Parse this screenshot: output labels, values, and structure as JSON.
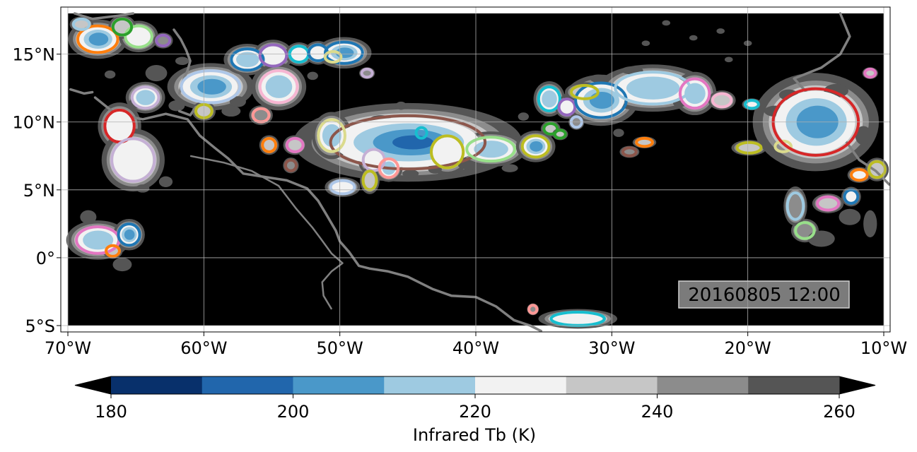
{
  "map": {
    "timestamp": "20160805 12:00",
    "extent": {
      "lon": [
        -70,
        -10
      ],
      "lat": [
        -5,
        18
      ]
    },
    "x_ticks": [
      {
        "lon": -70,
        "label": "70°W"
      },
      {
        "lon": -60,
        "label": "60°W"
      },
      {
        "lon": -50,
        "label": "50°W"
      },
      {
        "lon": -40,
        "label": "40°W"
      },
      {
        "lon": -30,
        "label": "30°W"
      },
      {
        "lon": -20,
        "label": "20°W"
      },
      {
        "lon": -10,
        "label": "10°W"
      }
    ],
    "y_ticks": [
      {
        "lat": 15,
        "label": "15°N"
      },
      {
        "lat": 10,
        "label": "10°N"
      },
      {
        "lat": 5,
        "label": "5°N"
      },
      {
        "lat": 0,
        "label": "0°"
      },
      {
        "lat": -5,
        "label": "5°S"
      }
    ],
    "grid": true,
    "background_color": "#000000",
    "coastline_color": "#808080"
  },
  "colorbar": {
    "label": "Infrared Tb (K)",
    "min": 180,
    "max": 260,
    "step": 10,
    "extend": "both",
    "colors": [
      "#08306b",
      "#2166ac",
      "#4a98c9",
      "#9ecae1",
      "#f2f2f2",
      "#c6c6c6",
      "#8c8c8c",
      "#555555"
    ],
    "under_color": "#000000",
    "over_color": "#000000",
    "tick_values": [
      180,
      200,
      220,
      240,
      260
    ],
    "tick_labels": [
      "180",
      "200",
      "220",
      "240",
      "260"
    ]
  },
  "chart_data": {
    "type": "heatmap",
    "variable": "Infrared Tb (K)",
    "clusters": [
      {
        "lon": -67.8,
        "lat": 16.1,
        "rx": 1.5,
        "ry": 1.0,
        "min_tb": 205,
        "outline": "#ff7f0e"
      },
      {
        "lon": -64.8,
        "lat": 16.3,
        "rx": 1.0,
        "ry": 0.8,
        "min_tb": 225,
        "outline": "#98df8a"
      },
      {
        "lon": -66.0,
        "lat": 17.0,
        "rx": 0.7,
        "ry": 0.6,
        "min_tb": 230,
        "outline": "#2ca02c"
      },
      {
        "lon": -63.0,
        "lat": 16.0,
        "rx": 0.5,
        "ry": 0.4,
        "min_tb": 240,
        "outline": "#9467bd"
      },
      {
        "lon": -66.2,
        "lat": 9.7,
        "rx": 1.1,
        "ry": 1.2,
        "min_tb": 225,
        "outline": "#d62728"
      },
      {
        "lon": -65.2,
        "lat": 7.2,
        "rx": 1.6,
        "ry": 1.6,
        "min_tb": 222,
        "outline": "#c5b0d5"
      },
      {
        "lon": -64.3,
        "lat": 11.8,
        "rx": 1.0,
        "ry": 0.8,
        "min_tb": 215,
        "outline": "#c5b0d5"
      },
      {
        "lon": -59.5,
        "lat": 12.6,
        "rx": 2.2,
        "ry": 1.2,
        "min_tb": 200,
        "outline": "#aec7e8"
      },
      {
        "lon": -60.0,
        "lat": 10.8,
        "rx": 0.6,
        "ry": 0.5,
        "min_tb": 235,
        "outline": "#bcbd22"
      },
      {
        "lon": -56.8,
        "lat": 14.6,
        "rx": 1.2,
        "ry": 0.8,
        "min_tb": 215,
        "outline": "#1f77b4"
      },
      {
        "lon": -54.9,
        "lat": 14.9,
        "rx": 1.0,
        "ry": 0.8,
        "min_tb": 218,
        "outline": "#9467bd"
      },
      {
        "lon": -54.5,
        "lat": 12.6,
        "rx": 1.4,
        "ry": 1.2,
        "min_tb": 215,
        "outline": "#f7b6d2"
      },
      {
        "lon": -53.0,
        "lat": 15.0,
        "rx": 0.7,
        "ry": 0.6,
        "min_tb": 225,
        "outline": "#17becf"
      },
      {
        "lon": -51.6,
        "lat": 15.1,
        "rx": 0.7,
        "ry": 0.6,
        "min_tb": 225,
        "outline": "#1f77b4"
      },
      {
        "lon": -49.7,
        "lat": 15.1,
        "rx": 1.4,
        "ry": 0.8,
        "min_tb": 205,
        "outline": "#1f77b4"
      },
      {
        "lon": -45.0,
        "lat": 8.5,
        "rx": 5.8,
        "ry": 2.0,
        "min_tb": 192,
        "outline": "#8c564b"
      },
      {
        "lon": -50.6,
        "lat": 9.0,
        "rx": 1.0,
        "ry": 1.2,
        "min_tb": 215,
        "outline": "#dbdb8d"
      },
      {
        "lon": -49.8,
        "lat": 5.2,
        "rx": 0.9,
        "ry": 0.5,
        "min_tb": 222,
        "outline": "#aec7e8"
      },
      {
        "lon": -47.5,
        "lat": 7.2,
        "rx": 0.8,
        "ry": 0.8,
        "min_tb": 220,
        "outline": "#c5b0d5"
      },
      {
        "lon": -46.4,
        "lat": 6.6,
        "rx": 0.7,
        "ry": 0.7,
        "min_tb": 215,
        "outline": "#ff9896"
      },
      {
        "lon": -47.8,
        "lat": 5.7,
        "rx": 0.5,
        "ry": 0.7,
        "min_tb": 230,
        "outline": "#bcbd22"
      },
      {
        "lon": -55.8,
        "lat": 10.5,
        "rx": 0.6,
        "ry": 0.5,
        "min_tb": 240,
        "outline": "#ff9896"
      },
      {
        "lon": -55.2,
        "lat": 8.3,
        "rx": 0.5,
        "ry": 0.5,
        "min_tb": 235,
        "outline": "#ff7f0e"
      },
      {
        "lon": -53.3,
        "lat": 8.3,
        "rx": 0.6,
        "ry": 0.5,
        "min_tb": 230,
        "outline": "#e377c2"
      },
      {
        "lon": -53.6,
        "lat": 6.8,
        "rx": 0.4,
        "ry": 0.4,
        "min_tb": 240,
        "outline": "#8c564b"
      },
      {
        "lon": -42.1,
        "lat": 7.8,
        "rx": 1.2,
        "ry": 1.2,
        "min_tb": 220,
        "outline": "#bcbd22"
      },
      {
        "lon": -38.9,
        "lat": 8.0,
        "rx": 1.8,
        "ry": 0.9,
        "min_tb": 210,
        "outline": "#98df8a"
      },
      {
        "lon": -35.6,
        "lat": 8.2,
        "rx": 1.0,
        "ry": 0.8,
        "min_tb": 200,
        "outline": "#bcbd22"
      },
      {
        "lon": -34.5,
        "lat": 9.5,
        "rx": 0.5,
        "ry": 0.4,
        "min_tb": 230,
        "outline": "#2ca02c"
      },
      {
        "lon": -33.8,
        "lat": 9.1,
        "rx": 0.4,
        "ry": 0.3,
        "min_tb": 232,
        "outline": "#2ca02c"
      },
      {
        "lon": -44.0,
        "lat": 9.2,
        "rx": 0.4,
        "ry": 0.4,
        "min_tb": 235,
        "outline": "#17becf"
      },
      {
        "lon": -34.6,
        "lat": 11.7,
        "rx": 0.8,
        "ry": 0.9,
        "min_tb": 215,
        "outline": "#17becf"
      },
      {
        "lon": -33.3,
        "lat": 11.1,
        "rx": 0.6,
        "ry": 0.6,
        "min_tb": 222,
        "outline": "#9467bd"
      },
      {
        "lon": -30.8,
        "lat": 11.6,
        "rx": 1.9,
        "ry": 1.3,
        "min_tb": 200,
        "outline": "#1f77b4"
      },
      {
        "lon": -32.0,
        "lat": 12.2,
        "rx": 1.0,
        "ry": 0.5,
        "min_tb": 230,
        "outline": "#bcbd22"
      },
      {
        "lon": -27.0,
        "lat": 12.5,
        "rx": 2.8,
        "ry": 1.2,
        "min_tb": 210,
        "outline": "#9ecae1"
      },
      {
        "lon": -23.9,
        "lat": 12.1,
        "rx": 1.1,
        "ry": 1.1,
        "min_tb": 215,
        "outline": "#e377c2"
      },
      {
        "lon": -21.9,
        "lat": 11.6,
        "rx": 0.7,
        "ry": 0.5,
        "min_tb": 235,
        "outline": "#f7b6d2"
      },
      {
        "lon": -19.7,
        "lat": 11.3,
        "rx": 0.5,
        "ry": 0.3,
        "min_tb": 225,
        "outline": "#17becf"
      },
      {
        "lon": -32.6,
        "lat": 10.0,
        "rx": 0.4,
        "ry": 0.4,
        "min_tb": 242,
        "outline": "#aec7e8"
      },
      {
        "lon": -27.6,
        "lat": 8.5,
        "rx": 0.6,
        "ry": 0.3,
        "min_tb": 235,
        "outline": "#ff7f0e"
      },
      {
        "lon": -28.7,
        "lat": 7.8,
        "rx": 0.5,
        "ry": 0.3,
        "min_tb": 238,
        "outline": "#8c564b"
      },
      {
        "lon": -19.9,
        "lat": 8.1,
        "rx": 0.9,
        "ry": 0.4,
        "min_tb": 235,
        "outline": "#bcbd22"
      },
      {
        "lon": -17.4,
        "lat": 8.2,
        "rx": 0.6,
        "ry": 0.4,
        "min_tb": 232,
        "outline": "#dbdb8d"
      },
      {
        "lon": -15.0,
        "lat": 10.0,
        "rx": 3.2,
        "ry": 2.5,
        "min_tb": 198,
        "outline": "#d62728"
      },
      {
        "lon": -11.8,
        "lat": 6.1,
        "rx": 0.6,
        "ry": 0.4,
        "min_tb": 225,
        "outline": "#ff7f0e"
      },
      {
        "lon": -10.5,
        "lat": 6.5,
        "rx": 0.6,
        "ry": 0.6,
        "min_tb": 235,
        "outline": "#bcbd22"
      },
      {
        "lon": -14.1,
        "lat": 4.0,
        "rx": 0.8,
        "ry": 0.5,
        "min_tb": 232,
        "outline": "#e377c2"
      },
      {
        "lon": -12.4,
        "lat": 4.5,
        "rx": 0.5,
        "ry": 0.5,
        "min_tb": 225,
        "outline": "#1f77b4"
      },
      {
        "lon": -15.8,
        "lat": 2.0,
        "rx": 0.7,
        "ry": 0.6,
        "min_tb": 238,
        "outline": "#98df8a"
      },
      {
        "lon": -16.5,
        "lat": 3.8,
        "rx": 0.6,
        "ry": 1.0,
        "min_tb": 238,
        "outline": "#9ecae1"
      },
      {
        "lon": -11.0,
        "lat": 13.6,
        "rx": 0.4,
        "ry": 0.3,
        "min_tb": 235,
        "outline": "#e377c2"
      },
      {
        "lon": -67.8,
        "lat": 1.3,
        "rx": 1.6,
        "ry": 1.0,
        "min_tb": 215,
        "outline": "#e377c2"
      },
      {
        "lon": -65.5,
        "lat": 1.7,
        "rx": 0.8,
        "ry": 0.8,
        "min_tb": 205,
        "outline": "#1f77b4"
      },
      {
        "lon": -66.7,
        "lat": 0.5,
        "rx": 0.5,
        "ry": 0.4,
        "min_tb": 235,
        "outline": "#ff7f0e"
      },
      {
        "lon": -32.5,
        "lat": -4.5,
        "rx": 2.0,
        "ry": 0.5,
        "min_tb": 222,
        "outline": "#17becf"
      },
      {
        "lon": -35.8,
        "lat": -3.8,
        "rx": 0.3,
        "ry": 0.3,
        "min_tb": 240,
        "outline": "#ff9896"
      },
      {
        "lon": -50.5,
        "lat": 14.8,
        "rx": 0.6,
        "ry": 0.4,
        "min_tb": 248,
        "outline": "#dbdb8d"
      },
      {
        "lon": -48.0,
        "lat": 13.6,
        "rx": 0.4,
        "ry": 0.3,
        "min_tb": 245,
        "outline": "#c5b0d5"
      },
      {
        "lon": -69.0,
        "lat": 17.2,
        "rx": 0.6,
        "ry": 0.4,
        "min_tb": 232,
        "outline": "#9ecae1"
      }
    ]
  }
}
